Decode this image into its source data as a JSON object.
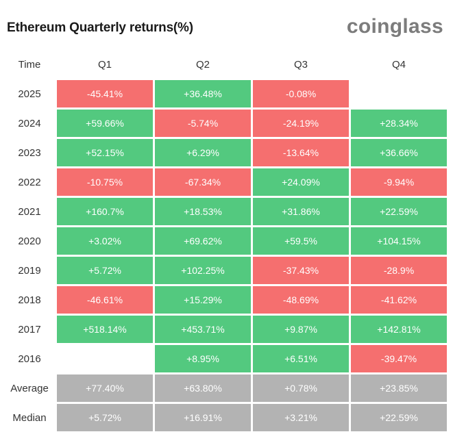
{
  "title": "Ethereum Quarterly returns(%)",
  "brand": "coinglass",
  "colors": {
    "positive": "#53c97f",
    "negative": "#f56f6f",
    "stat": "#b3b3b3"
  },
  "chart_data": {
    "type": "table",
    "corner_label": "Time",
    "columns": [
      "Q1",
      "Q2",
      "Q3",
      "Q4"
    ],
    "rows": [
      {
        "label": "2025",
        "values": [
          "-45.41%",
          "+36.48%",
          "-0.08%",
          ""
        ]
      },
      {
        "label": "2024",
        "values": [
          "+59.66%",
          "-5.74%",
          "-24.19%",
          "+28.34%"
        ]
      },
      {
        "label": "2023",
        "values": [
          "+52.15%",
          "+6.29%",
          "-13.64%",
          "+36.66%"
        ]
      },
      {
        "label": "2022",
        "values": [
          "-10.75%",
          "-67.34%",
          "+24.09%",
          "-9.94%"
        ]
      },
      {
        "label": "2021",
        "values": [
          "+160.7%",
          "+18.53%",
          "+31.86%",
          "+22.59%"
        ]
      },
      {
        "label": "2020",
        "values": [
          "+3.02%",
          "+69.62%",
          "+59.5%",
          "+104.15%"
        ]
      },
      {
        "label": "2019",
        "values": [
          "+5.72%",
          "+102.25%",
          "-37.43%",
          "-28.9%"
        ]
      },
      {
        "label": "2018",
        "values": [
          "-46.61%",
          "+15.29%",
          "-48.69%",
          "-41.62%"
        ]
      },
      {
        "label": "2017",
        "values": [
          "+518.14%",
          "+453.71%",
          "+9.87%",
          "+142.81%"
        ]
      },
      {
        "label": "2016",
        "values": [
          "",
          "+8.95%",
          "+6.51%",
          "-39.47%"
        ]
      }
    ],
    "summary": [
      {
        "label": "Average",
        "values": [
          "+77.40%",
          "+63.80%",
          "+0.78%",
          "+23.85%"
        ]
      },
      {
        "label": "Median",
        "values": [
          "+5.72%",
          "+16.91%",
          "+3.21%",
          "+22.59%"
        ]
      }
    ]
  }
}
